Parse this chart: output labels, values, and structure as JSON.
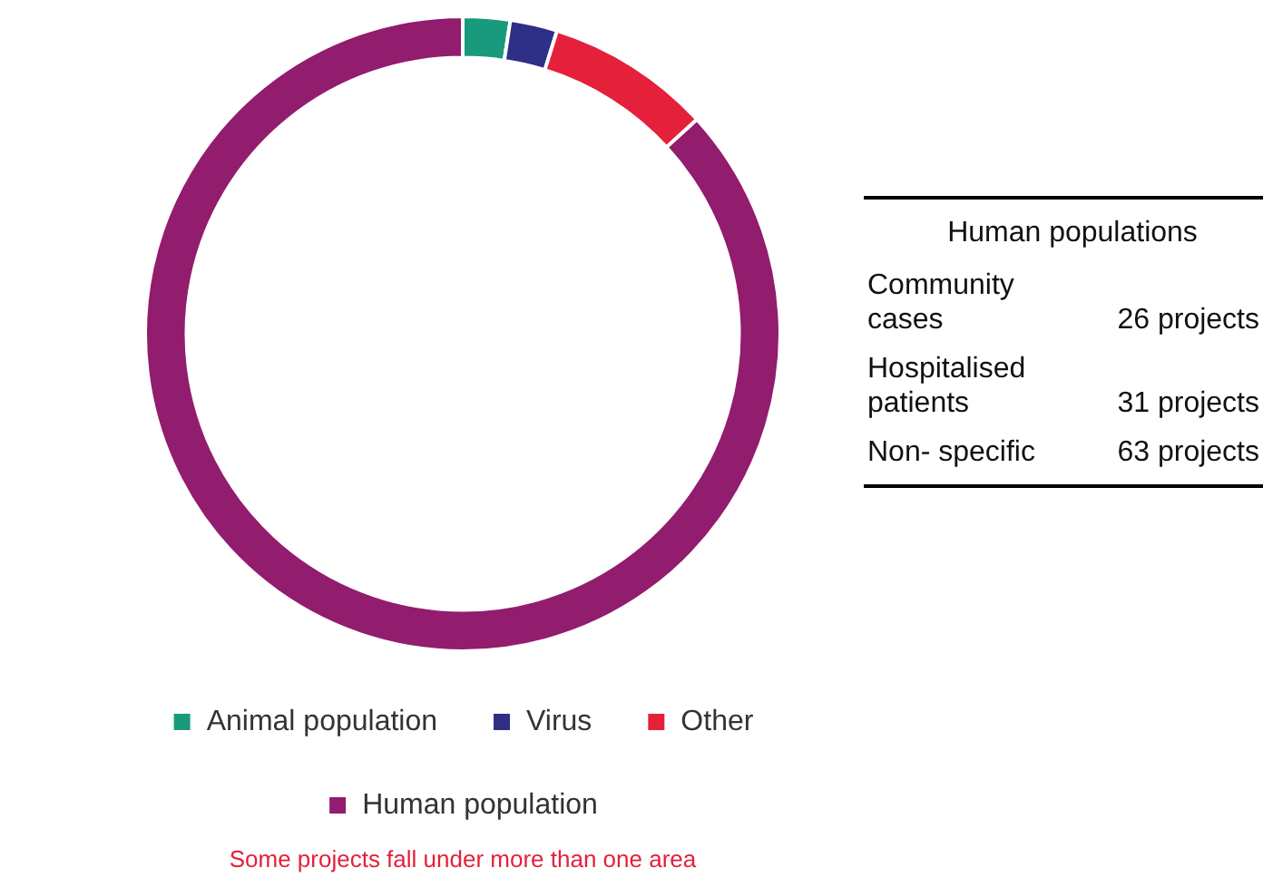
{
  "chart_data": [
    {
      "type": "donut",
      "categories": [
        "Animal population",
        "Virus",
        "Other",
        "Human population"
      ],
      "values": [
        2.4,
        2.4,
        8.4,
        86.8
      ],
      "colors": [
        "#1a9a7c",
        "#2e2f86",
        "#e4203a",
        "#921c6e"
      ],
      "legend": "bottom",
      "annotations": [
        "Some projects fall under more than one area"
      ]
    },
    {
      "type": "other",
      "title": "Human populations",
      "annotations": [
        "Community cases",
        "26 projects",
        "Hospitalised patients",
        "31 projects",
        "Non- specific",
        "63 projects"
      ]
    }
  ]
}
